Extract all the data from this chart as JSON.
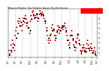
{
  "title": "Milwaukee Weather  Solar Radiation",
  "subtitle": "Avg per Day W/m2/minute",
  "background_color": "#ffffff",
  "plot_bg_color": "#ffffff",
  "grid_color": "#bbbbbb",
  "x_min": 0,
  "x_max": 52,
  "y_min": 0,
  "y_max": 10,
  "y_ticks": [
    1,
    2,
    3,
    4,
    5,
    6,
    7,
    8,
    9,
    10
  ],
  "vline_positions": [
    4,
    8,
    13,
    17,
    22,
    27,
    31,
    36,
    41,
    45,
    49
  ],
  "red_points": [
    [
      0.5,
      1.5
    ],
    [
      1.0,
      0.8
    ],
    [
      1.5,
      2.5
    ],
    [
      2.0,
      1.2
    ],
    [
      2.5,
      3.5
    ],
    [
      3.0,
      2.8
    ],
    [
      3.5,
      1.5
    ],
    [
      4.0,
      4.5
    ],
    [
      4.5,
      5.5
    ],
    [
      5.0,
      6.2
    ],
    [
      5.5,
      7.5
    ],
    [
      6.0,
      7.0
    ],
    [
      6.5,
      8.0
    ],
    [
      7.0,
      7.5
    ],
    [
      7.5,
      6.5
    ],
    [
      8.0,
      5.5
    ],
    [
      8.5,
      6.8
    ],
    [
      9.0,
      8.0
    ],
    [
      9.5,
      7.2
    ],
    [
      10.0,
      8.5
    ],
    [
      10.5,
      7.8
    ],
    [
      11.0,
      6.5
    ],
    [
      11.5,
      7.2
    ],
    [
      12.0,
      6.0
    ],
    [
      12.5,
      5.0
    ],
    [
      13.0,
      7.5
    ],
    [
      13.5,
      8.5
    ],
    [
      14.0,
      9.2
    ],
    [
      14.5,
      9.5
    ],
    [
      15.0,
      8.8
    ],
    [
      15.5,
      8.0
    ],
    [
      16.0,
      8.5
    ],
    [
      16.5,
      9.0
    ],
    [
      17.0,
      8.2
    ],
    [
      17.5,
      7.5
    ],
    [
      18.0,
      8.8
    ],
    [
      18.5,
      9.5
    ],
    [
      19.0,
      9.0
    ],
    [
      19.5,
      8.5
    ],
    [
      20.0,
      9.2
    ],
    [
      20.5,
      8.8
    ],
    [
      21.0,
      8.0
    ],
    [
      21.5,
      7.5
    ],
    [
      22.0,
      7.0
    ],
    [
      22.5,
      6.0
    ],
    [
      23.0,
      4.5
    ],
    [
      23.5,
      3.5
    ],
    [
      24.0,
      3.0
    ],
    [
      24.5,
      3.5
    ],
    [
      25.0,
      4.8
    ],
    [
      25.5,
      6.0
    ],
    [
      26.0,
      6.8
    ],
    [
      26.5,
      5.5
    ],
    [
      27.0,
      4.5
    ],
    [
      27.5,
      3.5
    ],
    [
      28.0,
      4.5
    ],
    [
      28.5,
      5.5
    ],
    [
      29.0,
      6.5
    ],
    [
      29.5,
      5.8
    ],
    [
      30.0,
      5.0
    ],
    [
      30.5,
      5.5
    ],
    [
      31.0,
      6.0
    ],
    [
      31.5,
      6.5
    ],
    [
      32.0,
      5.8
    ],
    [
      32.5,
      6.5
    ],
    [
      33.0,
      7.0
    ],
    [
      33.5,
      6.0
    ],
    [
      34.0,
      5.2
    ],
    [
      34.5,
      4.5
    ],
    [
      35.0,
      3.5
    ],
    [
      35.5,
      2.5
    ],
    [
      36.0,
      3.0
    ],
    [
      36.5,
      4.5
    ],
    [
      37.0,
      5.5
    ],
    [
      37.5,
      4.5
    ],
    [
      38.0,
      3.5
    ],
    [
      38.5,
      2.5
    ],
    [
      39.0,
      1.5
    ],
    [
      39.5,
      2.0
    ],
    [
      40.0,
      3.0
    ],
    [
      40.5,
      4.0
    ],
    [
      41.0,
      4.5
    ],
    [
      41.5,
      3.5
    ],
    [
      42.0,
      2.5
    ],
    [
      42.5,
      1.5
    ],
    [
      43.0,
      0.8
    ],
    [
      43.5,
      1.5
    ],
    [
      44.0,
      2.5
    ],
    [
      44.5,
      2.0
    ],
    [
      45.0,
      1.2
    ],
    [
      45.5,
      1.8
    ],
    [
      46.0,
      2.8
    ],
    [
      46.5,
      3.5
    ],
    [
      47.0,
      2.5
    ],
    [
      47.5,
      1.8
    ],
    [
      48.0,
      2.2
    ],
    [
      48.5,
      2.8
    ],
    [
      49.0,
      1.5
    ],
    [
      49.5,
      0.9
    ],
    [
      50.0,
      1.5
    ],
    [
      50.5,
      2.0
    ],
    [
      51.0,
      1.2
    ],
    [
      51.5,
      0.5
    ]
  ],
  "black_points": [
    [
      0.8,
      0.5
    ],
    [
      1.8,
      1.5
    ],
    [
      2.8,
      2.0
    ],
    [
      3.8,
      2.5
    ],
    [
      4.8,
      4.0
    ],
    [
      5.8,
      5.0
    ],
    [
      6.8,
      6.5
    ],
    [
      7.8,
      7.2
    ],
    [
      8.8,
      7.5
    ],
    [
      9.8,
      8.0
    ],
    [
      10.8,
      7.0
    ],
    [
      11.8,
      6.0
    ],
    [
      12.8,
      5.5
    ],
    [
      13.8,
      7.8
    ],
    [
      14.8,
      8.5
    ],
    [
      15.8,
      8.2
    ],
    [
      16.8,
      8.8
    ],
    [
      17.8,
      8.0
    ],
    [
      18.8,
      9.0
    ],
    [
      19.8,
      8.8
    ],
    [
      20.8,
      8.5
    ],
    [
      21.8,
      7.5
    ],
    [
      22.8,
      5.5
    ],
    [
      23.8,
      4.0
    ],
    [
      24.8,
      4.5
    ],
    [
      25.8,
      5.5
    ],
    [
      26.8,
      5.8
    ],
    [
      27.8,
      4.0
    ],
    [
      28.8,
      5.2
    ],
    [
      29.8,
      6.2
    ],
    [
      30.8,
      5.5
    ],
    [
      31.8,
      6.2
    ],
    [
      32.8,
      6.5
    ],
    [
      33.8,
      5.5
    ],
    [
      34.8,
      3.5
    ],
    [
      35.8,
      2.0
    ],
    [
      36.8,
      4.5
    ],
    [
      37.8,
      3.8
    ],
    [
      38.8,
      2.2
    ],
    [
      39.8,
      3.2
    ],
    [
      40.8,
      4.8
    ],
    [
      41.8,
      2.8
    ],
    [
      42.8,
      1.2
    ],
    [
      43.8,
      2.0
    ],
    [
      44.8,
      1.5
    ],
    [
      45.8,
      1.2
    ],
    [
      46.8,
      1.8
    ],
    [
      47.8,
      1.5
    ],
    [
      48.8,
      1.8
    ],
    [
      49.8,
      1.0
    ],
    [
      50.8,
      0.8
    ]
  ],
  "x_tick_labels": [
    "1/07",
    "4/07",
    "7/07",
    "10/07",
    "1/08",
    "4/08",
    "7/08",
    "10/08",
    "1/09",
    "4/09",
    "7/09",
    "10/09",
    "1/10"
  ],
  "x_tick_positions": [
    0,
    4,
    8,
    13,
    17,
    22,
    27,
    31,
    36,
    41,
    45,
    49,
    52
  ]
}
